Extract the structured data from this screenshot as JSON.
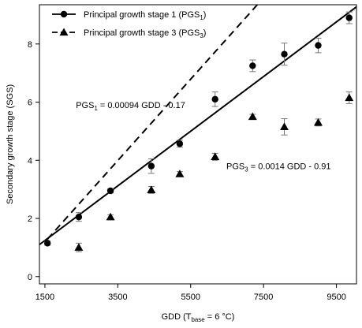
{
  "chart_data": {
    "type": "scatter",
    "xlabel": {
      "prefix": "GDD (T",
      "sub": "base",
      "suffix": " = 6 °C)"
    },
    "ylabel": "Secondary growth stage (SGS)",
    "xlim": [
      1350,
      10050
    ],
    "ylim": [
      -0.25,
      9.35
    ],
    "xticks": [
      1500,
      3500,
      5500,
      7500,
      9500
    ],
    "yticks": [
      0,
      2,
      4,
      6,
      8
    ],
    "legend": {
      "placement": "top-left",
      "entries": [
        {
          "prefix": "Principal growth stage 1 (PGS",
          "sub": "1",
          "suffix": ")",
          "marker": "circle",
          "line": "solid"
        },
        {
          "prefix": "Principal growth stage 3 (PGS",
          "sub": "3",
          "suffix": ")",
          "marker": "triangle",
          "line": "dashed"
        }
      ]
    },
    "series": [
      {
        "marker": "circle",
        "points": [
          {
            "x": 1570,
            "y": 1.15,
            "err": 0.07
          },
          {
            "x": 2430,
            "y": 2.05,
            "err": 0.15
          },
          {
            "x": 3300,
            "y": 2.95,
            "err": 0.07
          },
          {
            "x": 4420,
            "y": 3.8,
            "err": 0.25
          },
          {
            "x": 5200,
            "y": 4.57,
            "err": 0.12
          },
          {
            "x": 6170,
            "y": 6.1,
            "err": 0.25
          },
          {
            "x": 7200,
            "y": 7.25,
            "err": 0.2
          },
          {
            "x": 8070,
            "y": 7.65,
            "err": 0.38
          },
          {
            "x": 9000,
            "y": 7.95,
            "err": 0.25
          },
          {
            "x": 9850,
            "y": 8.9,
            "err": 0.2
          }
        ],
        "fit": {
          "slope": 0.00094,
          "intercept": -0.17,
          "x_range": [
            1350,
            10050
          ],
          "line": "solid"
        }
      },
      {
        "marker": "triangle",
        "points": [
          {
            "x": 2430,
            "y": 1.0,
            "err": 0.15
          },
          {
            "x": 3300,
            "y": 2.05,
            "err": 0.07
          },
          {
            "x": 4420,
            "y": 2.98,
            "err": 0.12
          },
          {
            "x": 5200,
            "y": 3.53,
            "err": 0.08
          },
          {
            "x": 6170,
            "y": 4.12,
            "err": 0.12
          },
          {
            "x": 7200,
            "y": 5.5,
            "err": 0.08
          },
          {
            "x": 8070,
            "y": 5.15,
            "err": 0.28
          },
          {
            "x": 9000,
            "y": 5.3,
            "err": 0.12
          },
          {
            "x": 9850,
            "y": 6.15,
            "err": 0.2
          }
        ],
        "fit": {
          "slope": 0.0014,
          "intercept": -0.91,
          "x_range": [
            1570,
            9850
          ],
          "line": "dashed"
        }
      }
    ],
    "annotations": [
      {
        "anchor_x": 2350,
        "anchor_y": 5.8,
        "prefix": "PGS",
        "sub": "1",
        "suffix": " = 0.00094 GDD - 0.17"
      },
      {
        "anchor_x": 6480,
        "anchor_y": 3.7,
        "prefix": "PGS",
        "sub": "3",
        "suffix": " = 0.0014 GDD - 0.91"
      }
    ]
  }
}
